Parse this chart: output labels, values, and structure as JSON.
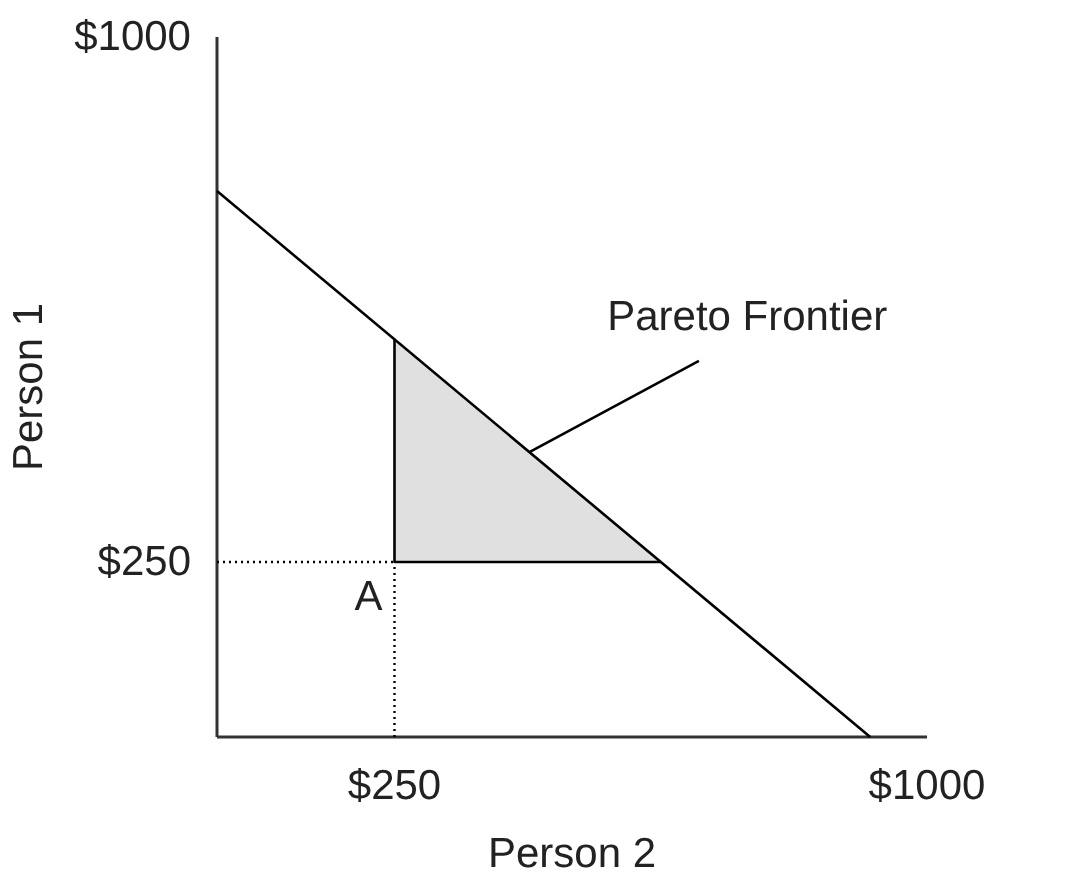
{
  "chart_data": {
    "type": "line",
    "xlabel": "Person 2",
    "ylabel": "Person 1",
    "xlim": [
      0,
      1000
    ],
    "ylim": [
      0,
      1000
    ],
    "xticks": [
      {
        "value": 250,
        "label": "$250"
      },
      {
        "value": 1000,
        "label": "$1000"
      }
    ],
    "yticks": [
      {
        "value": 250,
        "label": "$250"
      },
      {
        "value": 1000,
        "label": "$1000"
      }
    ],
    "series": [
      {
        "x": [
          250,
          625
        ],
        "values": [
          250,
          250
        ],
        "lower": [
          250,
          250
        ],
        "upper": [
          568,
          250
        ],
        "color": "#000000"
      },
      {
        "x": [
          250,
          250
        ],
        "values": [
          250,
          568
        ],
        "color": "#000000"
      },
      {
        "x": [
          0,
          920
        ],
        "values": [
          780,
          0
        ],
        "color": "#000000"
      },
      {
        "x": [
          0,
          250
        ],
        "values": [
          250,
          250
        ],
        "color": "#000000",
        "line_style": "dotted"
      },
      {
        "x": [
          250,
          250
        ],
        "values": [
          0,
          250
        ],
        "color": "#000000",
        "line_style": "dotted"
      }
    ],
    "annotations": [
      {
        "text": "Pareto Frontier",
        "x": 440,
        "y": 407
      },
      {
        "text": "A",
        "x": 250,
        "y": 250
      }
    ]
  }
}
